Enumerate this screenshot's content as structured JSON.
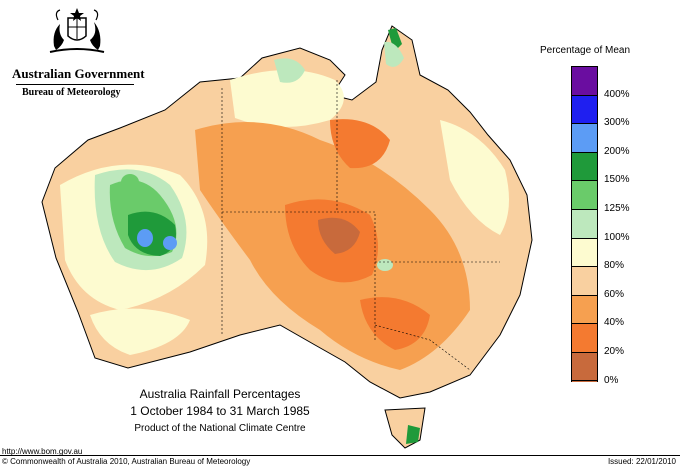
{
  "header": {
    "org": "Australian Government",
    "bureau": "Bureau of Meteorology"
  },
  "map": {
    "title": "Australia Rainfall Percentages",
    "period": "1 October 1984 to 31 March 1985",
    "product": "Product of the National Climate Centre"
  },
  "legend": {
    "title": "Percentage of Mean",
    "levels": [
      {
        "label": "400%",
        "color": "#6a0da0"
      },
      {
        "label": "300%",
        "color": "#1f1ff0"
      },
      {
        "label": "200%",
        "color": "#5c9cf5"
      },
      {
        "label": "150%",
        "color": "#1f9a3a"
      },
      {
        "label": "125%",
        "color": "#6acb6a"
      },
      {
        "label": "100%",
        "color": "#bde8bd"
      },
      {
        "label": "80%",
        "color": "#fdfbd0"
      },
      {
        "label": "60%",
        "color": "#f9d0a0"
      },
      {
        "label": "40%",
        "color": "#f6a050"
      },
      {
        "label": "20%",
        "color": "#f47a30"
      },
      {
        "label": "0%",
        "color": "#c86a3c"
      }
    ]
  },
  "footer": {
    "url": "http://www.bom.gov.au",
    "copyright": "© Commonwealth of Australia 2010, Australian Bureau of Meteorology",
    "issued": "Issued: 22/01/2010"
  }
}
